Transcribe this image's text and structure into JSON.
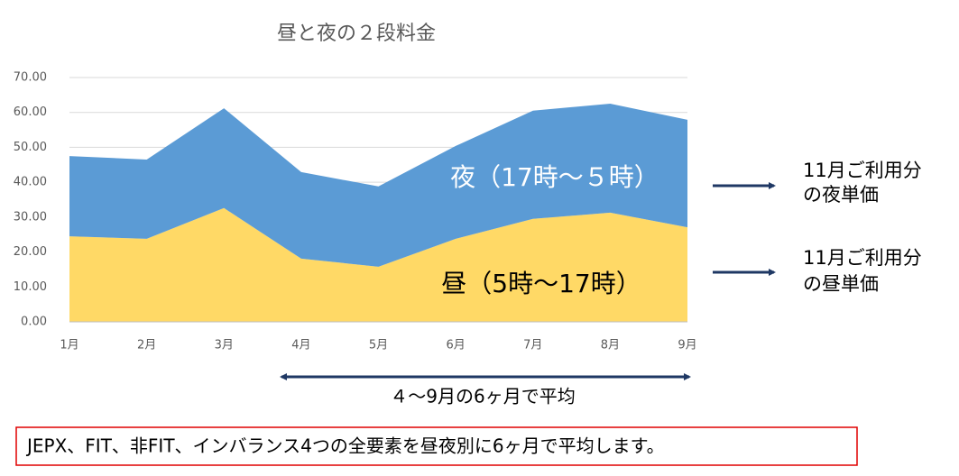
{
  "chart_data": {
    "type": "stacked_area",
    "title": "昼と夜の２段料金",
    "categories": [
      "1月",
      "2月",
      "3月",
      "4月",
      "5月",
      "6月",
      "7月",
      "8月",
      "9月"
    ],
    "series": [
      {
        "name": "昼（5時～17時）",
        "color": "#ffd966",
        "values": [
          24.5,
          23.8,
          32.6,
          18.1,
          15.8,
          23.8,
          29.5,
          31.3,
          27.1
        ]
      },
      {
        "name": "夜（17時～５時）",
        "color": "#5b9bd5",
        "values": [
          23.0,
          22.7,
          28.6,
          24.8,
          23.0,
          26.6,
          31.0,
          31.2,
          30.8
        ]
      }
    ],
    "ylim": [
      0,
      70
    ],
    "yticks": [
      {
        "value": 0,
        "label": "0.00"
      },
      {
        "value": 10,
        "label": "10.00"
      },
      {
        "value": 20,
        "label": "20.00"
      },
      {
        "value": 30,
        "label": "30.00"
      },
      {
        "value": 40,
        "label": "40.00"
      },
      {
        "value": 50,
        "label": "50.00"
      },
      {
        "value": 60,
        "label": "60.00"
      },
      {
        "value": 70,
        "label": "70.00"
      }
    ],
    "grid": true,
    "annotations": {
      "night_unit": [
        "11月ご利用分",
        "の夜単価"
      ],
      "day_unit": [
        "11月ご利用分",
        "の昼単価"
      ],
      "average_range": "４～9月の6ヶ月で平均"
    },
    "note": "JEPX、FIT、非FIT、インバランス4つの全要素を昼夜別に6ヶ月で平均します。"
  }
}
